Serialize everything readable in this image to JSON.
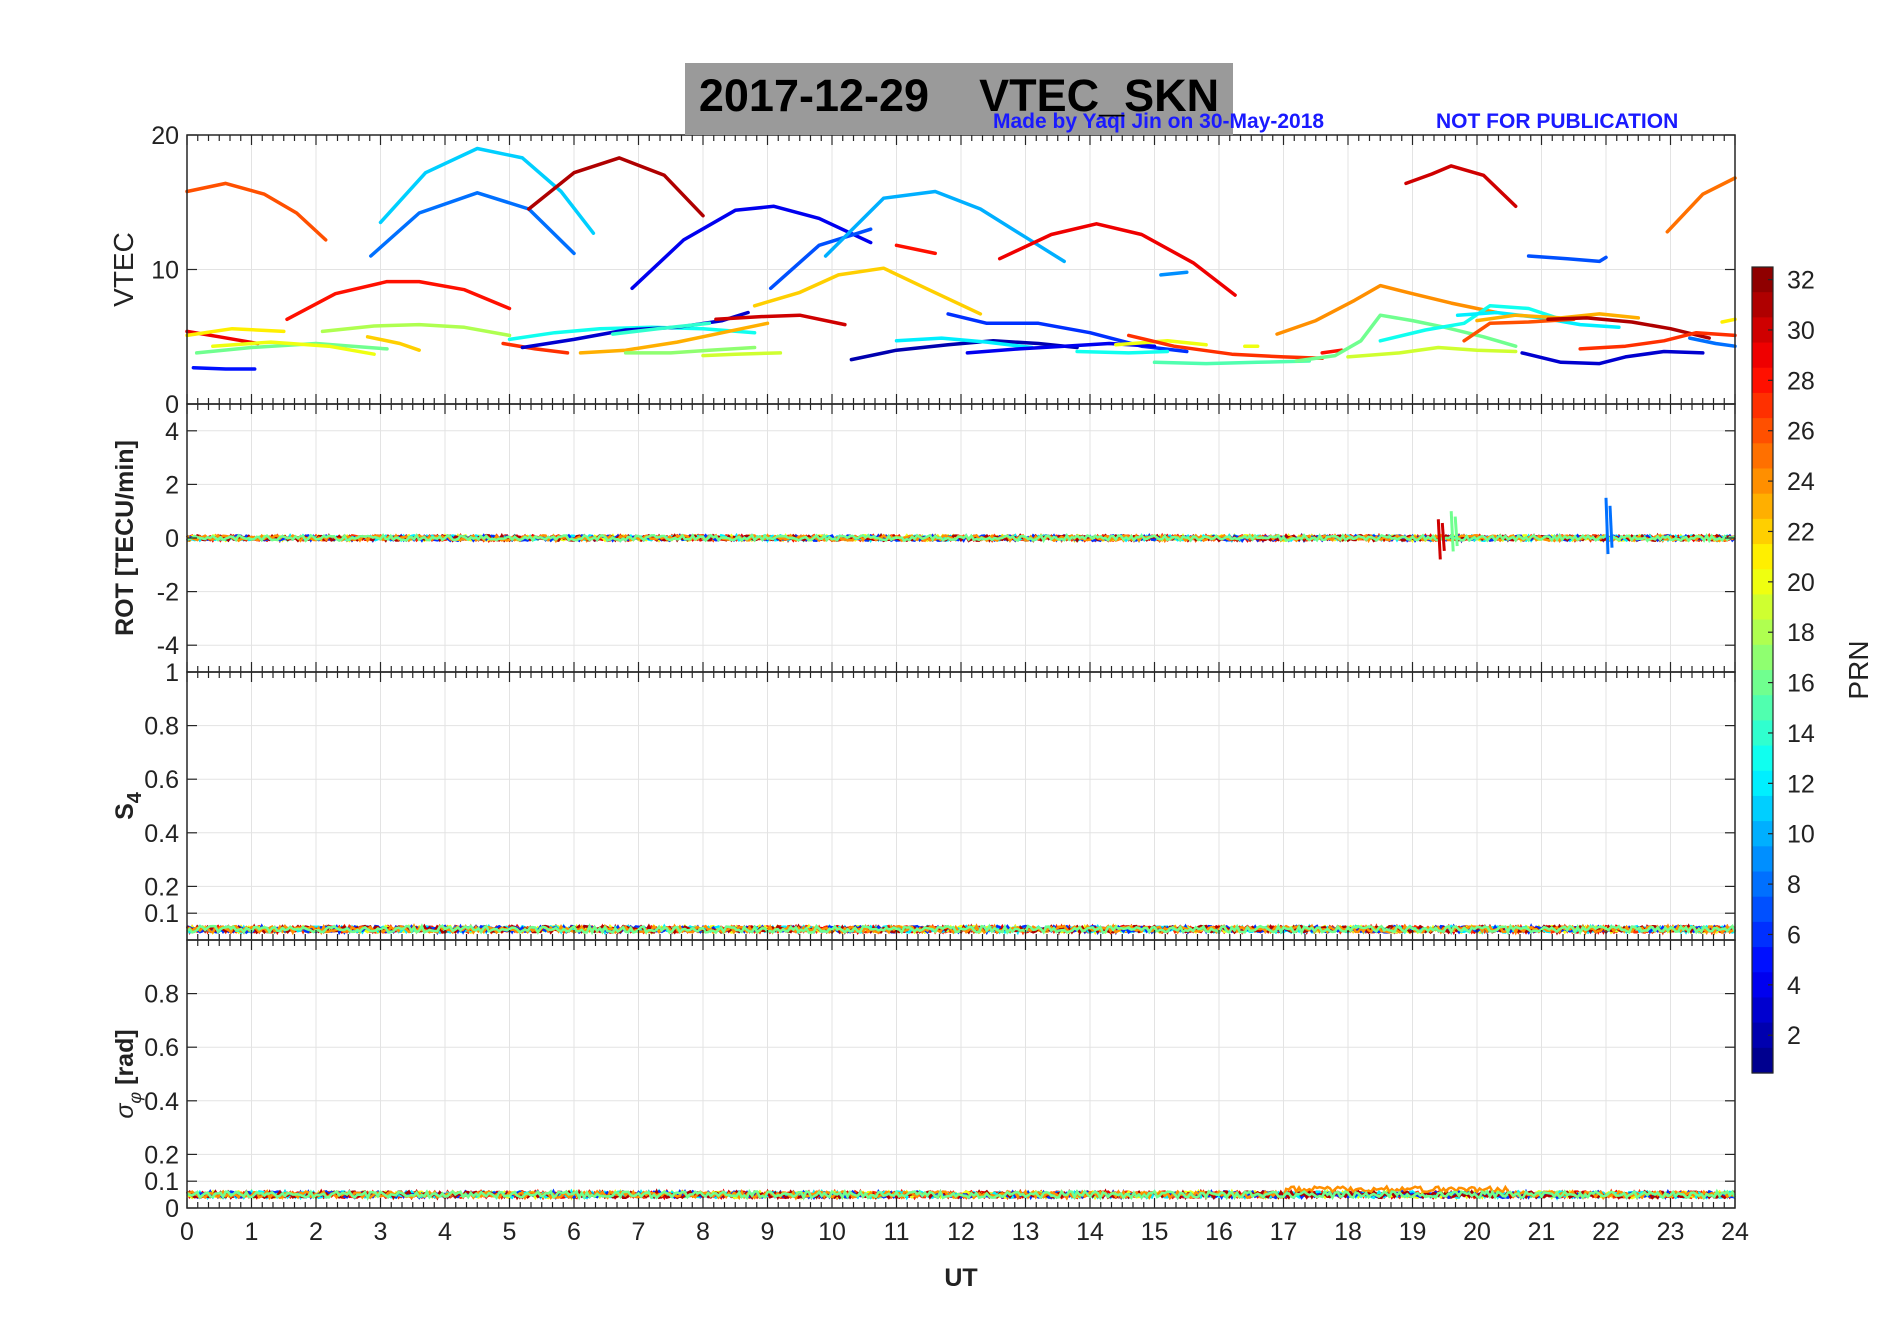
{
  "title": {
    "date": "2017-12-29",
    "label": "VTEC_SKN"
  },
  "credit": {
    "made_by": "Made by Yaqi Jin on 30-May-2018",
    "notice": "NOT FOR PUBLICATION"
  },
  "colors": {
    "title_box": "#9a9a9a",
    "credit_text": "#1a1aff",
    "grid": "#e3e3e3",
    "axes": "#262626"
  },
  "chart_data": [
    {
      "type": "line",
      "panel": "vtec",
      "ylabel": "VTEC",
      "xlabel": "",
      "xlim": [
        0,
        24
      ],
      "ylim": [
        0,
        20
      ],
      "yticks": [
        0,
        10,
        20
      ],
      "grid": true,
      "series": [
        {
          "prn": 26,
          "x": [
            0,
            0.6,
            1.2,
            1.7,
            2.15
          ],
          "y": [
            15.8,
            16.4,
            15.6,
            14.2,
            12.2
          ]
        },
        {
          "prn": 11,
          "x": [
            3,
            3.7,
            4.5,
            5.2,
            5.8,
            6.3
          ],
          "y": [
            13.5,
            17.2,
            19.0,
            18.3,
            15.8,
            12.7
          ]
        },
        {
          "prn": 8,
          "x": [
            2.85,
            3.6,
            4.5,
            5.3,
            6.0
          ],
          "y": [
            11.0,
            14.2,
            15.7,
            14.5,
            11.2
          ]
        },
        {
          "prn": 31,
          "x": [
            5.3,
            6.0,
            6.7,
            7.4,
            8.0
          ],
          "y": [
            14.5,
            17.2,
            18.3,
            17.0,
            14.0
          ]
        },
        {
          "prn": 4,
          "x": [
            6.9,
            7.7,
            8.5,
            9.1,
            9.8,
            10.6
          ],
          "y": [
            8.6,
            12.2,
            14.4,
            14.7,
            13.8,
            12.0
          ]
        },
        {
          "prn": 7,
          "x": [
            9.05,
            9.8,
            10.6
          ],
          "y": [
            8.6,
            11.8,
            13.0
          ]
        },
        {
          "prn": 10,
          "x": [
            9.9,
            10.8,
            11.6,
            12.3,
            13.0,
            13.6
          ],
          "y": [
            11.0,
            15.3,
            15.8,
            14.5,
            12.4,
            10.6
          ]
        },
        {
          "prn": 28,
          "x": [
            11.0,
            11.6
          ],
          "y": [
            11.8,
            11.2
          ]
        },
        {
          "prn": 29,
          "x": [
            12.6,
            13.4,
            14.1,
            14.8,
            15.6,
            16.25
          ],
          "y": [
            10.8,
            12.6,
            13.4,
            12.6,
            10.5,
            8.1
          ]
        },
        {
          "prn": 28,
          "x": [
            1.55,
            2.3,
            3.1,
            3.6,
            4.3,
            5.0
          ],
          "y": [
            6.3,
            8.2,
            9.1,
            9.1,
            8.5,
            7.1
          ]
        },
        {
          "prn": 9,
          "x": [
            15.1,
            15.5
          ],
          "y": [
            9.6,
            9.8
          ]
        },
        {
          "prn": 30,
          "x": [
            18.9,
            19.3,
            19.6,
            20.1,
            20.6
          ],
          "y": [
            16.4,
            17.1,
            17.7,
            17.0,
            14.7
          ]
        },
        {
          "prn": 7,
          "x": [
            20.8,
            21.4,
            21.9,
            22.0
          ],
          "y": [
            11.0,
            10.8,
            10.6,
            10.9
          ]
        },
        {
          "prn": 25,
          "x": [
            22.95,
            23.5,
            24.0
          ],
          "y": [
            12.8,
            15.6,
            16.8
          ]
        },
        {
          "prn": 22,
          "x": [
            8.8,
            9.5,
            10.1,
            10.8,
            11.5,
            12.3
          ],
          "y": [
            7.3,
            8.3,
            9.6,
            10.1,
            8.5,
            6.7
          ]
        },
        {
          "prn": 29,
          "x": [
            0,
            0.5,
            1.1
          ],
          "y": [
            5.4,
            5.0,
            4.5
          ]
        },
        {
          "prn": 21,
          "x": [
            0,
            0.7,
            1.5
          ],
          "y": [
            5.1,
            5.6,
            5.4
          ]
        },
        {
          "prn": 16,
          "x": [
            0.15,
            1.0,
            2.0,
            3.1
          ],
          "y": [
            3.8,
            4.2,
            4.5,
            4.1
          ]
        },
        {
          "prn": 20,
          "x": [
            0.4,
            1.3,
            2.2,
            2.9
          ],
          "y": [
            4.3,
            4.6,
            4.3,
            3.7
          ]
        },
        {
          "prn": 5,
          "x": [
            0.1,
            0.6,
            1.05
          ],
          "y": [
            2.7,
            2.6,
            2.6
          ]
        },
        {
          "prn": 18,
          "x": [
            2.1,
            2.9,
            3.6,
            4.3,
            5.0
          ],
          "y": [
            5.4,
            5.8,
            5.9,
            5.7,
            5.1
          ]
        },
        {
          "prn": 22,
          "x": [
            2.8,
            3.3,
            3.6
          ],
          "y": [
            5.0,
            4.5,
            4.0
          ]
        },
        {
          "prn": 27,
          "x": [
            4.9,
            5.4,
            5.9
          ],
          "y": [
            4.5,
            4.1,
            3.8
          ]
        },
        {
          "prn": 13,
          "x": [
            5.0,
            5.7,
            6.4,
            7.2,
            8.0,
            8.8
          ],
          "y": [
            4.8,
            5.3,
            5.6,
            5.7,
            5.6,
            5.3
          ]
        },
        {
          "prn": 3,
          "x": [
            5.2,
            6.0,
            6.8,
            7.6,
            8.3,
            8.7
          ],
          "y": [
            4.2,
            4.8,
            5.5,
            5.7,
            6.2,
            6.8
          ]
        },
        {
          "prn": 14,
          "x": [
            6.6,
            7.3,
            8.1
          ],
          "y": [
            5.2,
            5.6,
            6.0
          ]
        },
        {
          "prn": 30,
          "x": [
            8.2,
            8.9,
            9.5,
            10.2
          ],
          "y": [
            6.3,
            6.5,
            6.6,
            5.9
          ]
        },
        {
          "prn": 23,
          "x": [
            6.1,
            6.8,
            7.6,
            8.3,
            9.0
          ],
          "y": [
            3.8,
            4.0,
            4.6,
            5.3,
            6.0
          ]
        },
        {
          "prn": 17,
          "x": [
            6.8,
            7.5,
            8.1,
            8.8
          ],
          "y": [
            3.8,
            3.8,
            4.0,
            4.2
          ]
        },
        {
          "prn": 19,
          "x": [
            8.0,
            8.5,
            9.2
          ],
          "y": [
            3.6,
            3.7,
            3.8
          ]
        },
        {
          "prn": 2,
          "x": [
            10.3,
            11.0,
            11.8,
            12.5,
            13.2,
            13.8
          ],
          "y": [
            3.3,
            4.0,
            4.4,
            4.7,
            4.5,
            4.2
          ]
        },
        {
          "prn": 12,
          "x": [
            11.0,
            11.7,
            12.4,
            13.1
          ],
          "y": [
            4.7,
            4.9,
            4.6,
            4.2
          ]
        },
        {
          "prn": 6,
          "x": [
            11.8,
            12.4,
            13.2,
            14.0,
            14.8,
            15.5
          ],
          "y": [
            6.7,
            6.0,
            6.0,
            5.3,
            4.3,
            3.9
          ]
        },
        {
          "prn": 4,
          "x": [
            12.1,
            12.9,
            13.6,
            14.3,
            15.0
          ],
          "y": [
            3.8,
            4.1,
            4.3,
            4.5,
            4.3
          ]
        },
        {
          "prn": 13,
          "x": [
            13.8,
            14.6,
            15.2
          ],
          "y": [
            3.9,
            3.8,
            3.9
          ]
        },
        {
          "prn": 20,
          "x": [
            14.4,
            15.2,
            15.8
          ],
          "y": [
            4.4,
            4.7,
            4.4
          ]
        },
        {
          "prn": 27,
          "x": [
            14.6,
            15.3,
            16.2,
            17.0,
            17.6
          ],
          "y": [
            5.1,
            4.3,
            3.7,
            3.5,
            3.4
          ]
        },
        {
          "prn": 15,
          "x": [
            15.0,
            15.8,
            16.6,
            17.4
          ],
          "y": [
            3.1,
            3.0,
            3.1,
            3.2
          ]
        },
        {
          "prn": 28,
          "x": [
            17.6,
            17.9
          ],
          "y": [
            3.8,
            4.0
          ]
        },
        {
          "prn": 20,
          "x": [
            16.4,
            16.6
          ],
          "y": [
            4.3,
            4.3
          ]
        },
        {
          "prn": 24,
          "x": [
            16.9,
            17.5,
            18.1,
            18.5,
            19.0,
            19.6,
            20.3
          ],
          "y": [
            5.2,
            6.2,
            7.7,
            8.8,
            8.2,
            7.5,
            6.8
          ]
        },
        {
          "prn": 16,
          "x": [
            17.2,
            17.8,
            18.2,
            18.5,
            19.0,
            19.5,
            20.1,
            20.6
          ],
          "y": [
            3.2,
            3.6,
            4.7,
            6.6,
            6.2,
            5.7,
            5.0,
            4.3
          ]
        },
        {
          "prn": 19,
          "x": [
            18.0,
            18.8,
            19.4,
            20.0,
            20.6
          ],
          "y": [
            3.5,
            3.8,
            4.2,
            4.0,
            3.9
          ]
        },
        {
          "prn": 13,
          "x": [
            18.5,
            19.2,
            19.8,
            20.2,
            20.8,
            21.3
          ],
          "y": [
            4.7,
            5.5,
            6.0,
            7.3,
            7.1,
            6.3
          ]
        },
        {
          "prn": 12,
          "x": [
            19.7,
            20.3,
            21.0,
            21.6,
            22.2
          ],
          "y": [
            6.6,
            6.8,
            6.4,
            5.9,
            5.7
          ]
        },
        {
          "prn": 23,
          "x": [
            20.0,
            20.6,
            21.3,
            21.9,
            22.5
          ],
          "y": [
            6.2,
            6.6,
            6.4,
            6.7,
            6.4
          ]
        },
        {
          "prn": 26,
          "x": [
            19.8,
            20.2,
            20.8,
            21.5
          ],
          "y": [
            4.7,
            6.0,
            6.1,
            6.3
          ]
        },
        {
          "prn": 31,
          "x": [
            21.1,
            21.7,
            22.4,
            23.0,
            23.6
          ],
          "y": [
            6.3,
            6.4,
            6.1,
            5.6,
            4.9
          ]
        },
        {
          "prn": 27,
          "x": [
            21.6,
            22.3,
            22.9,
            23.4,
            24.0
          ],
          "y": [
            4.1,
            4.3,
            4.7,
            5.3,
            5.1
          ]
        },
        {
          "prn": 3,
          "x": [
            20.7,
            21.3,
            21.9,
            22.3,
            22.9,
            23.5
          ],
          "y": [
            3.8,
            3.1,
            3.0,
            3.5,
            3.9,
            3.8
          ]
        },
        {
          "prn": 8,
          "x": [
            23.3,
            23.7,
            24.0
          ],
          "y": [
            4.9,
            4.5,
            4.3
          ]
        },
        {
          "prn": 21,
          "x": [
            23.8,
            24.0
          ],
          "y": [
            6.1,
            6.3
          ]
        }
      ]
    },
    {
      "type": "line",
      "panel": "rot",
      "ylabel": "ROT [TECU/min]",
      "xlim": [
        0,
        24
      ],
      "ylim": [
        -5,
        5
      ],
      "yticks": [
        -4,
        -2,
        0,
        2,
        4
      ],
      "grid": true,
      "baseline": 0,
      "noise_amplitude": 0.1,
      "spikes": [
        {
          "prn": 30,
          "x": 19.4,
          "values": [
            0.7,
            -0.8
          ]
        },
        {
          "prn": 16,
          "x": 19.6,
          "values": [
            1.0,
            -0.5
          ]
        },
        {
          "prn": 8,
          "x": 22.0,
          "values": [
            1.5,
            -0.6
          ]
        }
      ]
    },
    {
      "type": "line",
      "panel": "s4",
      "ylabel": "S4",
      "xlim": [
        0,
        24
      ],
      "ylim": [
        0,
        1
      ],
      "yticks": [
        0.1,
        0.2,
        0.4,
        0.6,
        0.8,
        1
      ],
      "grid": true,
      "baseline": 0.04,
      "noise_amplitude": 0.012
    },
    {
      "type": "line",
      "panel": "sigma_phi",
      "ylabel": "σφ [rad]",
      "xlabel": "UT",
      "xlim": [
        0,
        24
      ],
      "ylim": [
        0,
        1
      ],
      "yticks": [
        0,
        0.1,
        0.2,
        0.4,
        0.6,
        0.8
      ],
      "xticks": [
        0,
        1,
        2,
        3,
        4,
        5,
        6,
        7,
        8,
        9,
        10,
        11,
        12,
        13,
        14,
        15,
        16,
        17,
        18,
        19,
        20,
        21,
        22,
        23,
        24
      ],
      "grid": true,
      "baseline": 0.05,
      "noise_amplitude": 0.012,
      "bumps": [
        {
          "x_start": 17,
          "x_end": 20.5,
          "value": 0.07,
          "prn": 24
        }
      ]
    },
    {
      "type": "colorbar",
      "label": "PRN",
      "range": [
        1,
        32
      ],
      "ticks": [
        2,
        4,
        6,
        8,
        10,
        12,
        14,
        16,
        18,
        20,
        22,
        24,
        26,
        28,
        30,
        32
      ],
      "colormap": "jet"
    }
  ]
}
